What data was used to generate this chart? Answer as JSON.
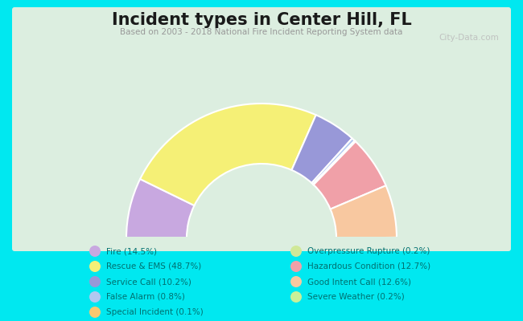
{
  "title": "Incident types in Center Hill, FL",
  "subtitle": "Based on 2003 - 2018 National Fire Incident Reporting System data",
  "bg_cyan": "#00e8f0",
  "chart_bg": "#dceee0",
  "categories": [
    "Fire",
    "Rescue & EMS",
    "Service Call",
    "False Alarm",
    "Special Incident",
    "Overpressure Rupture",
    "Hazardous Condition",
    "Good Intent Call",
    "Severe Weather"
  ],
  "values": [
    14.5,
    48.7,
    10.2,
    0.8,
    0.1,
    0.2,
    12.7,
    12.6,
    0.2
  ],
  "colors": [
    "#c8a8e0",
    "#f5f076",
    "#9898d8",
    "#b0c8f0",
    "#f8c870",
    "#d0e898",
    "#f0a0a8",
    "#f8c8a0",
    "#c8f098"
  ],
  "legend_labels_left": [
    "Fire (14.5%)",
    "Rescue & EMS (48.7%)",
    "Service Call (10.2%)",
    "False Alarm (0.8%)",
    "Special Incident (0.1%)"
  ],
  "legend_colors_left": [
    "#c8a8e0",
    "#f5f076",
    "#9898d8",
    "#b0c8f0",
    "#f8c870"
  ],
  "legend_labels_right": [
    "Overpressure Rupture (0.2%)",
    "Hazardous Condition (12.7%)",
    "Good Intent Call (12.6%)",
    "Severe Weather (0.2%)"
  ],
  "legend_colors_right": [
    "#d0e898",
    "#f0a0a8",
    "#f8c8a0",
    "#c8f098"
  ],
  "watermark": "City-Data.com",
  "figsize": [
    6.5,
    4.0
  ],
  "dpi": 100
}
